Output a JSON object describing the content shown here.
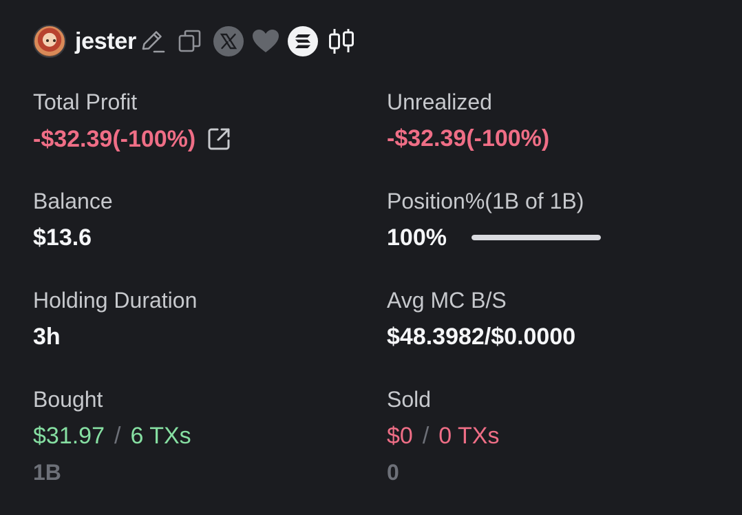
{
  "header": {
    "username": "jester",
    "icons": [
      "edit-icon",
      "copy-icon",
      "x-twitter-icon",
      "heart-icon",
      "solana-icon",
      "candlestick-chart-icon"
    ]
  },
  "stats": {
    "total_profit": {
      "label": "Total Profit",
      "value": "-$32.39(-100%)"
    },
    "unrealized": {
      "label": "Unrealized",
      "value": "-$32.39(-100%)"
    },
    "balance": {
      "label": "Balance",
      "value": "$13.6"
    },
    "position": {
      "label": "Position%(1B of 1B)",
      "value": "100%",
      "fill_fraction": 1.0
    },
    "holding_duration": {
      "label": "Holding Duration",
      "value": "3h"
    },
    "avg_mc": {
      "label": "Avg MC B/S",
      "value": "$48.3982/$0.0000"
    },
    "bought": {
      "label": "Bought",
      "amount": "$31.97",
      "separator": "/",
      "txs": "6 TXs",
      "tokens": "1B"
    },
    "sold": {
      "label": "Sold",
      "amount": "$0",
      "separator": "/",
      "txs": "0 TXs",
      "tokens": "0"
    }
  },
  "colors": {
    "background": "#1b1c20",
    "negative": "#ef6e86",
    "positive": "#86dfa2",
    "label": "#c7c9cd",
    "muted": "#6d7078"
  }
}
